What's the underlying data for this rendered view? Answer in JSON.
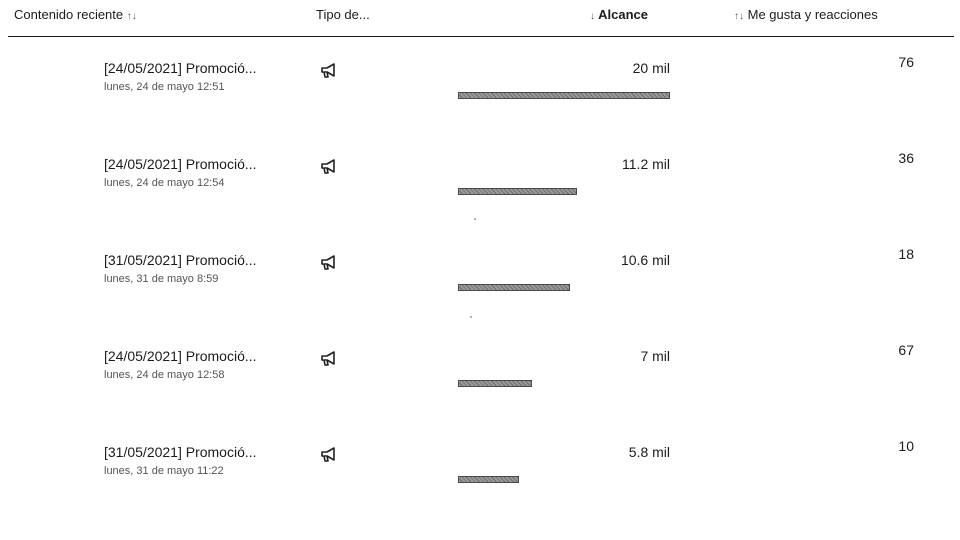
{
  "header": {
    "content_label": "Contenido reciente",
    "content_sort_icon": "↑↓",
    "type_label": "Tipo de...",
    "reach_sort_icon": "↓",
    "reach_label": "Alcance",
    "likes_sort_icon": "↑↓",
    "likes_label": "Me gusta y reacciones"
  },
  "posts": [
    {
      "title": "[24/05/2021] Promoció...",
      "date": "lunes, 24 de mayo 12:51",
      "type_icon": "megaphone-icon",
      "reach": "20 mil",
      "reach_value": 20.0,
      "likes": "76"
    },
    {
      "title": "[24/05/2021] Promoció...",
      "date": "lunes, 24 de mayo 12:54",
      "type_icon": "megaphone-icon",
      "reach": "11.2 mil",
      "reach_value": 11.2,
      "likes": "36"
    },
    {
      "title": "[31/05/2021] Promoció...",
      "date": "lunes, 31 de mayo 8:59",
      "type_icon": "megaphone-icon",
      "reach": "10.6 mil",
      "reach_value": 10.6,
      "likes": "18"
    },
    {
      "title": "[24/05/2021] Promoció...",
      "date": "lunes, 24 de mayo 12:58",
      "type_icon": "megaphone-icon",
      "reach": "7 mil",
      "reach_value": 7.0,
      "likes": "67"
    },
    {
      "title": "[31/05/2021] Promoció...",
      "date": "lunes, 31 de mayo 11:22",
      "type_icon": "megaphone-icon",
      "reach": "5.8 mil",
      "reach_value": 5.8,
      "likes": "10"
    }
  ]
}
